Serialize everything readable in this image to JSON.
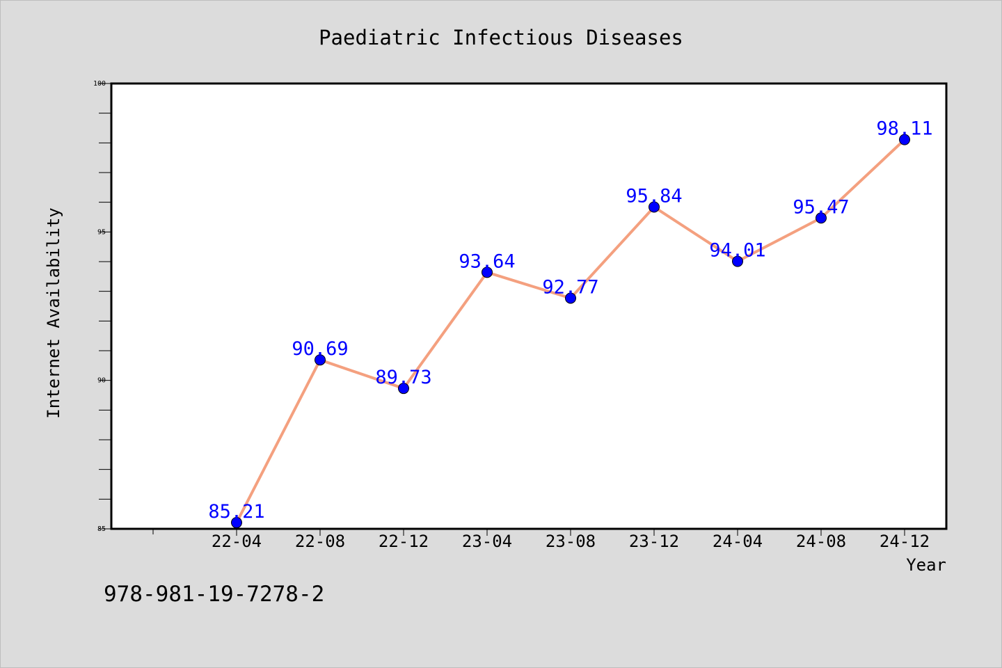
{
  "chart_data": {
    "type": "line",
    "title": "Paediatric Infectious Diseases",
    "xlabel": "Year",
    "ylabel": "Internet Availability",
    "categories": [
      "22-04",
      "22-08",
      "22-12",
      "23-04",
      "23-08",
      "23-12",
      "24-04",
      "24-08",
      "24-12"
    ],
    "series": [
      {
        "values": [
          85.21,
          90.69,
          89.73,
          93.64,
          92.77,
          95.84,
          94.01,
          95.47,
          98.11
        ],
        "data_labels": [
          "85.21",
          "90.69",
          "89.73",
          "93.64",
          "92.77",
          "95.84",
          "94.01",
          "95.47",
          "98.11"
        ],
        "line_color": "#f4a07f",
        "marker_color": "#0000ff",
        "label_color": "#0000ff"
      }
    ],
    "ylim": [
      85,
      100
    ],
    "yticks": [
      "85",
      "90",
      "95",
      "100"
    ],
    "grid": false,
    "legend": "none"
  },
  "footer": {
    "isbn": "978-981-19-7278-2"
  },
  "colors": {
    "background": "#dcdcdc",
    "plot_background": "#ffffff",
    "axis": "#000000"
  }
}
